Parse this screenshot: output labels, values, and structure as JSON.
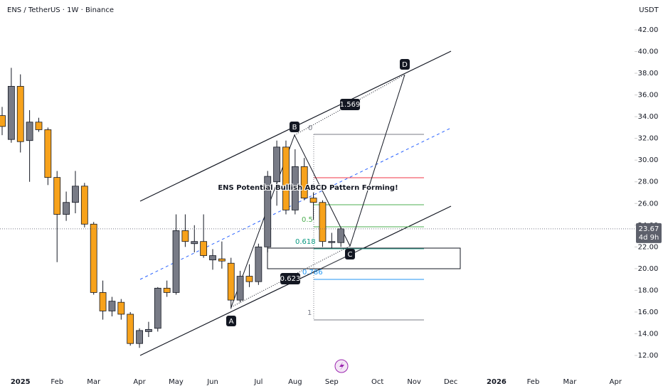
{
  "chart_data": {
    "type": "candlestick",
    "header": "ENS / TetherUS · 1W · Binance",
    "title": "ENS Potential Bullish ABCD Pattern Forming!",
    "currency": "USDT",
    "up_color": "#787b86",
    "down_color": "#f7a21b",
    "categories": [
      null,
      null,
      "2025",
      null,
      null,
      null,
      "Feb",
      null,
      null,
      null,
      "Mar",
      null,
      null,
      null,
      null,
      "Apr",
      null,
      null,
      null,
      "May",
      null,
      null,
      null,
      "Jun",
      null,
      null,
      null,
      null,
      "Jul",
      null,
      null,
      null,
      "Aug",
      null,
      null,
      null,
      "Sep",
      null,
      null,
      null,
      null,
      "Oct",
      null,
      null,
      null,
      "Nov",
      null,
      null,
      null,
      "Dec",
      null,
      null,
      null,
      null,
      "2026",
      null,
      null,
      null,
      "Feb",
      null,
      null,
      null,
      "Mar",
      null,
      null,
      null,
      null,
      "Apr",
      null
    ],
    "open": [
      34.1,
      31.9,
      36.8,
      31.8,
      33.5,
      32.8,
      28.4,
      25.0,
      26.1,
      27.6,
      24.1,
      17.8,
      16.1,
      16.9,
      15.8,
      13.1,
      14.2,
      14.5,
      18.2,
      17.8,
      23.5,
      22.3,
      22.5,
      20.8,
      20.9,
      20.5,
      17.1,
      19.3,
      18.8,
      22.0,
      28.0,
      31.2,
      25.4,
      29.4,
      26.5,
      26.1,
      22.4,
      22.4,
      null,
      null,
      null,
      null,
      null,
      null,
      null,
      null,
      null,
      null,
      null,
      null,
      null,
      null,
      null,
      null,
      null,
      null,
      null,
      null,
      null,
      null,
      null,
      null,
      null,
      null,
      null,
      null,
      null,
      null,
      null
    ],
    "high": [
      34.9,
      38.5,
      37.9,
      34.6,
      33.9,
      33.0,
      29.0,
      27.1,
      29.0,
      27.9,
      24.3,
      18.9,
      17.4,
      17.2,
      16.0,
      14.5,
      15.1,
      18.3,
      18.9,
      25.0,
      25.0,
      24.0,
      25.0,
      21.8,
      22.5,
      21.0,
      19.8,
      20.4,
      22.3,
      29.0,
      31.8,
      31.8,
      31.0,
      30.2,
      27.0,
      26.3,
      23.3,
      23.8,
      null,
      null,
      null,
      null,
      null,
      null,
      null,
      null,
      null,
      null,
      null,
      null,
      null,
      null,
      null,
      null,
      null,
      null,
      null,
      null,
      null,
      null,
      null,
      null,
      null,
      null,
      null,
      null,
      null,
      null,
      null
    ],
    "low": [
      32.3,
      31.6,
      30.7,
      28.0,
      32.6,
      27.7,
      20.6,
      24.4,
      25.1,
      23.8,
      17.6,
      15.3,
      15.6,
      15.3,
      12.9,
      12.7,
      13.7,
      14.2,
      17.4,
      17.6,
      22.0,
      21.5,
      21.0,
      19.9,
      20.0,
      16.3,
      16.9,
      18.3,
      18.5,
      21.5,
      25.8,
      25.0,
      25.0,
      26.3,
      24.5,
      22.0,
      21.9,
      22.0,
      null,
      null,
      null,
      null,
      null,
      null,
      null,
      null,
      null,
      null,
      null,
      null,
      null,
      null,
      null,
      null,
      null,
      null,
      null,
      null,
      null,
      null,
      null,
      null,
      null,
      null,
      null,
      null,
      null,
      null,
      null
    ],
    "close": [
      33.1,
      36.8,
      31.7,
      33.5,
      32.8,
      28.4,
      25.0,
      26.1,
      27.6,
      24.1,
      17.8,
      16.1,
      17.0,
      15.8,
      13.1,
      14.3,
      14.4,
      18.2,
      17.8,
      23.5,
      22.5,
      22.5,
      21.2,
      21.2,
      20.7,
      17.1,
      19.3,
      18.8,
      22.0,
      28.5,
      31.2,
      25.4,
      29.4,
      26.5,
      26.1,
      22.5,
      22.5,
      23.67,
      null,
      null,
      null,
      null,
      null,
      null,
      null,
      null,
      null,
      null,
      null,
      null,
      null,
      null,
      null,
      null,
      null,
      null,
      null,
      null,
      null,
      null,
      null,
      null,
      null,
      null,
      null,
      null,
      null,
      null,
      null
    ],
    "ylim": [
      12,
      42
    ],
    "yticks": [
      {
        "value": 12,
        "label": "12.00"
      },
      {
        "value": 14,
        "label": "14.00"
      },
      {
        "value": 16,
        "label": "16.00"
      },
      {
        "value": 18,
        "label": "18.00"
      },
      {
        "value": 20,
        "label": "20.00"
      },
      {
        "value": 22,
        "label": "22.00"
      },
      {
        "value": 24,
        "label": "24.00"
      },
      {
        "value": 26,
        "label": "26.00"
      },
      {
        "value": 28,
        "label": "28.00"
      },
      {
        "value": 30,
        "label": "30.00"
      },
      {
        "value": 32,
        "label": "32.00"
      },
      {
        "value": 34,
        "label": "34.00"
      },
      {
        "value": 36,
        "label": "36.00"
      },
      {
        "value": 38,
        "label": "38.00"
      },
      {
        "value": 40,
        "label": "40.00"
      },
      {
        "value": 42,
        "label": "42.00"
      }
    ],
    "last_price": 23.67,
    "countdown": "4d 9h",
    "annotations": {
      "points": [
        "A",
        "B",
        "C",
        "D"
      ],
      "ratios": [
        "1.569",
        "0.623"
      ],
      "fib_levels": [
        "0",
        "0.5",
        "0.618",
        "0.786",
        "1"
      ]
    }
  }
}
